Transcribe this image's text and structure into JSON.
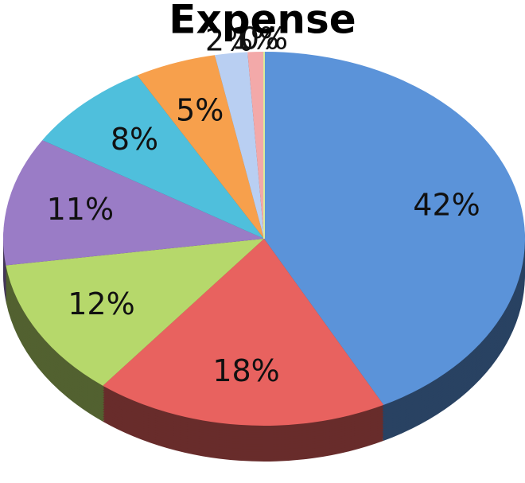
{
  "chart_data": {
    "type": "pie",
    "title": "Expense",
    "values": [
      42,
      18,
      12,
      11,
      8,
      5,
      2,
      1,
      0
    ],
    "value_labels": [
      "42%",
      "18%",
      "12%",
      "11%",
      "8%",
      "5%",
      "2%",
      "1%",
      "0%"
    ],
    "colors": [
      "#5b93d9",
      "#e8625f",
      "#b6d86b",
      "#9a7cc6",
      "#4fbfdc",
      "#f7a04c",
      "#b9cff2",
      "#f3a9a9",
      "#d9eb9b"
    ]
  }
}
